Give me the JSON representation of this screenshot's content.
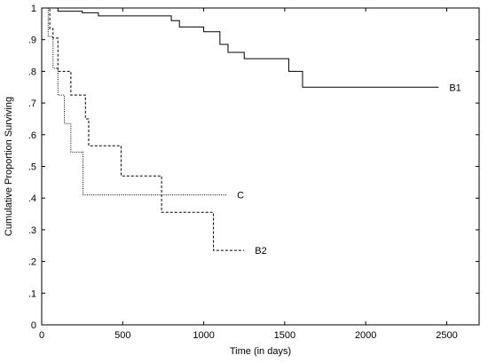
{
  "chart_data": {
    "type": "line",
    "title": "",
    "xlabel": "Time (in days)",
    "ylabel": "Cumulative Proportion Surviving",
    "xlim": [
      0,
      2700
    ],
    "ylim": [
      0,
      1
    ],
    "x_ticks": [
      0,
      500,
      1000,
      1500,
      2000,
      2500
    ],
    "y_ticks": [
      0,
      0.1,
      0.2,
      0.3,
      0.4,
      0.5,
      0.6,
      0.7,
      0.8,
      0.9,
      1
    ],
    "y_tick_labels": [
      "0",
      ".1",
      ".2",
      ".3",
      ".4",
      ".5",
      ".6",
      ".7",
      ".8",
      ".9",
      "1"
    ],
    "grid": false,
    "legend": "inline labels at series ends",
    "series": [
      {
        "name": "B1",
        "style": "solid",
        "x": [
          0,
          100,
          250,
          350,
          800,
          850,
          1000,
          1100,
          1150,
          1250,
          1525,
          1610,
          2450
        ],
        "y": [
          1,
          0.99,
          0.985,
          0.975,
          0.96,
          0.94,
          0.925,
          0.885,
          0.86,
          0.84,
          0.8,
          0.75,
          0.75
        ]
      },
      {
        "name": "B2",
        "style": "dashed",
        "x": [
          0,
          50,
          70,
          100,
          180,
          270,
          290,
          330,
          490,
          740,
          1060,
          1250
        ],
        "y": [
          1,
          0.935,
          0.905,
          0.8,
          0.725,
          0.65,
          0.565,
          0.565,
          0.47,
          0.355,
          0.235,
          0.235
        ]
      },
      {
        "name": "C",
        "style": "dotted",
        "x": [
          0,
          40,
          70,
          100,
          140,
          180,
          255,
          1140
        ],
        "y": [
          1,
          0.91,
          0.81,
          0.725,
          0.635,
          0.545,
          0.41,
          0.41
        ]
      }
    ]
  }
}
